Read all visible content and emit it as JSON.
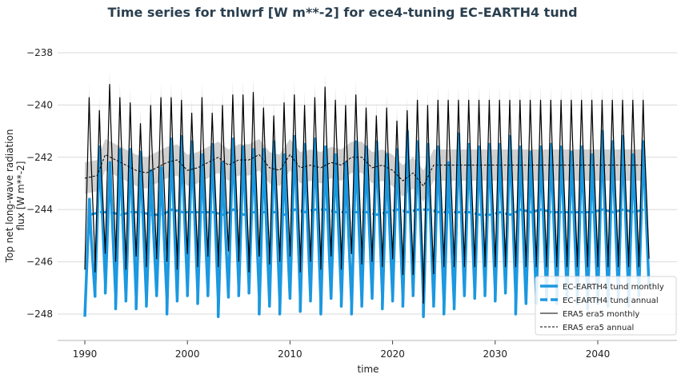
{
  "chart_data": {
    "type": "line",
    "title": "Time series for tnlwrf [W m**-2] for ece4-tuning EC-EARTH4 tund",
    "xlabel": "time",
    "ylabel": "Top net long-wave radiation flux [W m**-2]",
    "ylabel_lines": [
      "Top net long-wave radiation",
      "flux [W m**-2]"
    ],
    "xlim": [
      1987.2,
      2047.0
    ],
    "ylim": [
      -249.0,
      -237.6
    ],
    "x_ticks": [
      1990,
      2000,
      2010,
      2020,
      2030,
      2040
    ],
    "y_ticks": [
      -238,
      -240,
      -242,
      -244,
      -246,
      -248
    ],
    "y_tick_labels": [
      "−238",
      "−240",
      "−242",
      "−244",
      "−246",
      "−248"
    ],
    "grid": "horizontal",
    "legend_position": "lower right",
    "legend": [
      {
        "label": "EC-EARTH4 tund monthly",
        "color": "#1b98e0",
        "style": "solid-thick"
      },
      {
        "label": "EC-EARTH4 tund annual",
        "color": "#1b98e0",
        "style": "dashed-thick"
      },
      {
        "label": "ERA5 era5 monthly",
        "color": "#000000",
        "style": "solid-thin"
      },
      {
        "label": "ERA5 era5 annual",
        "color": "#000000",
        "style": "dashed-thin"
      }
    ],
    "colors": {
      "model": "#1b98e0",
      "obs": "#000000",
      "obs_spread_monthly": "#e3e3e3",
      "obs_spread_annual": "#c8c8c8",
      "grid": "#d9d9d9"
    },
    "series": [
      {
        "name": "EC-EARTH4 tund monthly",
        "description": "seasonal cycle, yearly max / min",
        "years": [
          1990,
          1991,
          1992,
          1993,
          1994,
          1995,
          1996,
          1997,
          1998,
          1999,
          2000,
          2001,
          2002,
          2003,
          2004,
          2005,
          2006,
          2007,
          2008,
          2009,
          2010,
          2011,
          2012,
          2013,
          2014,
          2015,
          2016,
          2017,
          2018,
          2019,
          2020,
          2021,
          2022,
          2023,
          2024,
          2025,
          2026,
          2027,
          2028,
          2029,
          2030,
          2031,
          2032,
          2033,
          2034,
          2035,
          2036,
          2037,
          2038,
          2039,
          2040,
          2041,
          2042,
          2043,
          2044
        ],
        "max": [
          -243.6,
          -241.6,
          -242.2,
          -241.7,
          -241.7,
          -241.8,
          -242.5,
          -242.4,
          -241.3,
          -241.2,
          -241.4,
          -241.9,
          -241.5,
          -242.2,
          -241.3,
          -241.6,
          -241.7,
          -241.7,
          -241.4,
          -241.9,
          -241.2,
          -241.5,
          -241.3,
          -241.6,
          -241.9,
          -242.2,
          -241.4,
          -241.6,
          -241.4,
          -241.9,
          -241.7,
          -241.0,
          -241.4,
          -241.5,
          -241.6,
          -242.2,
          -241.1,
          -241.5,
          -241.6,
          -241.5,
          -241.5,
          -241.2,
          -241.6,
          -241.8,
          -241.6,
          -241.5,
          -241.6,
          -241.8,
          -241.6,
          -241.9,
          -241.0,
          -241.4,
          -241.2,
          -241.9,
          -241.4
        ],
        "min": [
          -248.1,
          -247.0,
          -247.2,
          -247.8,
          -247.5,
          -247.8,
          -247.7,
          -247.3,
          -248.0,
          -247.5,
          -247.3,
          -247.6,
          -247.3,
          -248.1,
          -247.2,
          -247.3,
          -247.2,
          -248.0,
          -247.7,
          -248.0,
          -247.4,
          -247.9,
          -247.5,
          -248.0,
          -247.4,
          -247.7,
          -248.0,
          -247.7,
          -247.4,
          -247.8,
          -247.5,
          -247.7,
          -247.3,
          -248.1,
          -247.7,
          -248.0,
          -247.8,
          -247.3,
          -247.4,
          -247.3,
          -247.5,
          -247.2,
          -248.0,
          -247.6,
          -247.6,
          -247.5,
          -247.6,
          -247.4,
          -247.6,
          -247.8,
          -247.6,
          -247.7,
          -247.4,
          -247.7,
          -247.3
        ]
      },
      {
        "name": "EC-EARTH4 tund annual",
        "x": [
          1990.5,
          1991.5,
          1992.5,
          1993.5,
          1994.5,
          1995.5,
          1996.5,
          1997.5,
          1998.5,
          1999.5,
          2000.5,
          2001.5,
          2002.5,
          2003.5,
          2004.5,
          2005.5,
          2006.5,
          2007.5,
          2008.5,
          2009.5,
          2010.5,
          2011.5,
          2012.5,
          2013.5,
          2014.5,
          2015.5,
          2016.5,
          2017.5,
          2018.5,
          2019.5,
          2020.5,
          2021.5,
          2022.5,
          2023.5,
          2024.5,
          2025.5,
          2026.5,
          2027.5,
          2028.5,
          2029.5,
          2030.5,
          2031.5,
          2032.5,
          2033.5,
          2034.5,
          2035.5,
          2036.5,
          2037.5,
          2038.5,
          2039.5,
          2040.5,
          2041.5,
          2042.5,
          2043.5,
          2044.5
        ],
        "values": [
          -244.2,
          -244.1,
          -244.1,
          -244.2,
          -244.1,
          -244.1,
          -244.2,
          -244.2,
          -244.0,
          -244.1,
          -244.1,
          -244.1,
          -244.1,
          -244.2,
          -244.0,
          -244.2,
          -244.1,
          -244.1,
          -244.1,
          -244.2,
          -244.0,
          -244.1,
          -244.0,
          -244.0,
          -244.1,
          -244.1,
          -244.1,
          -244.1,
          -244.2,
          -244.1,
          -244.0,
          -244.1,
          -244.0,
          -244.0,
          -244.1,
          -244.1,
          -244.1,
          -244.1,
          -244.2,
          -244.2,
          -244.1,
          -244.2,
          -244.0,
          -244.1,
          -244.0,
          -244.1,
          -244.1,
          -244.1,
          -244.1,
          -244.1,
          -244.0,
          -244.1,
          -244.0,
          -244.1,
          -244.0
        ]
      },
      {
        "name": "ERA5 era5 monthly",
        "description": "seasonal cycle, yearly max / min; climatology repeated after 2024",
        "years": [
          1990,
          1991,
          1992,
          1993,
          1994,
          1995,
          1996,
          1997,
          1998,
          1999,
          2000,
          2001,
          2002,
          2003,
          2004,
          2005,
          2006,
          2007,
          2008,
          2009,
          2010,
          2011,
          2012,
          2013,
          2014,
          2015,
          2016,
          2017,
          2018,
          2019,
          2020,
          2021,
          2022,
          2023,
          2024,
          2025,
          2026,
          2027,
          2028,
          2029,
          2030,
          2031,
          2032,
          2033,
          2034,
          2035,
          2036,
          2037,
          2038,
          2039,
          2040,
          2041,
          2042,
          2043,
          2044
        ],
        "max": [
          -239.7,
          -240.2,
          -239.2,
          -239.7,
          -239.9,
          -240.7,
          -240.0,
          -239.7,
          -239.7,
          -239.8,
          -240.3,
          -239.7,
          -240.3,
          -240.0,
          -239.6,
          -239.6,
          -239.5,
          -240.1,
          -240.4,
          -239.9,
          -239.6,
          -240.0,
          -239.7,
          -239.3,
          -239.8,
          -240.0,
          -239.6,
          -240.1,
          -240.4,
          -240.1,
          -240.6,
          -240.2,
          -239.8,
          -240.0,
          -239.8,
          -239.8,
          -239.8,
          -239.8,
          -239.8,
          -239.8,
          -239.8,
          -239.8,
          -239.8,
          -239.8,
          -239.8,
          -239.8,
          -239.8,
          -239.8,
          -239.8,
          -239.8,
          -239.8,
          -239.8,
          -239.8,
          -239.8,
          -239.8
        ],
        "min": [
          -246.3,
          -246.4,
          -245.6,
          -246.0,
          -246.3,
          -245.8,
          -246.2,
          -245.9,
          -246.0,
          -246.3,
          -245.7,
          -246.2,
          -245.8,
          -246.2,
          -245.6,
          -246.0,
          -246.4,
          -245.8,
          -246.1,
          -246.0,
          -245.8,
          -246.4,
          -246.0,
          -246.3,
          -245.8,
          -246.3,
          -245.7,
          -246.1,
          -246.0,
          -246.2,
          -245.9,
          -246.5,
          -246.5,
          -247.6,
          -246.1,
          -246.2,
          -246.2,
          -246.2,
          -246.2,
          -246.2,
          -246.2,
          -246.2,
          -246.2,
          -246.2,
          -246.2,
          -246.2,
          -246.2,
          -246.2,
          -246.2,
          -246.2,
          -246.2,
          -246.2,
          -246.2,
          -246.2,
          -246.2
        ]
      },
      {
        "name": "ERA5 era5 annual",
        "x": [
          1990.0,
          1991.2,
          1992.0,
          1993.0,
          1994.0,
          1995.0,
          1996.0,
          1997.0,
          1998.0,
          1999.0,
          2000.0,
          2001.0,
          2002.0,
          2003.0,
          2004.0,
          2005.0,
          2006.0,
          2007.0,
          2008.0,
          2009.0,
          2010.0,
          2011.0,
          2012.0,
          2013.0,
          2014.0,
          2015.0,
          2016.0,
          2017.0,
          2018.0,
          2019.0,
          2020.0,
          2021.0,
          2022.0,
          2023.0,
          2024.0,
          2044.5
        ],
        "values": [
          -242.8,
          -242.7,
          -241.9,
          -242.1,
          -242.3,
          -242.5,
          -242.6,
          -242.4,
          -242.2,
          -242.1,
          -242.5,
          -242.4,
          -242.2,
          -242.0,
          -242.3,
          -242.1,
          -242.1,
          -241.9,
          -242.4,
          -242.5,
          -241.9,
          -242.4,
          -242.3,
          -242.4,
          -242.2,
          -242.3,
          -242.0,
          -242.0,
          -242.4,
          -242.3,
          -242.5,
          -242.9,
          -242.6,
          -243.1,
          -242.3,
          -242.3
        ]
      }
    ],
    "observation_spread": {
      "monthly_band_half_width": 0.6,
      "annual_band_half_width": 0.6
    }
  }
}
